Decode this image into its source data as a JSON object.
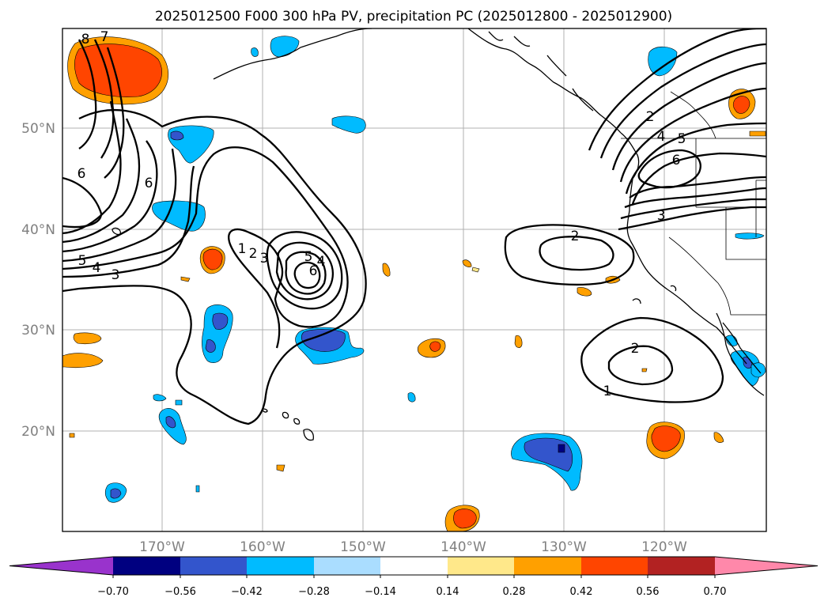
{
  "title": "2025012500 F000 300 hPa PV, precipitation PC (2025012800 - 2025012900)",
  "map": {
    "lat_labels": [
      "50°N",
      "40°N",
      "30°N",
      "20°N"
    ],
    "lon_labels": [
      "170°W",
      "160°W",
      "150°W",
      "140°W",
      "130°W",
      "120°W"
    ],
    "pv_contour_labels": [
      "8",
      "7",
      "6",
      "6",
      "5",
      "4",
      "3",
      "1",
      "2",
      "3",
      "5",
      "4",
      "6",
      "2",
      "2",
      "1",
      "2",
      "4",
      "5",
      "6",
      "3"
    ]
  },
  "colorbar": {
    "tick_labels": [
      "−0.70",
      "−0.56",
      "−0.42",
      "−0.28",
      "−0.14",
      "0.14",
      "0.28",
      "0.42",
      "0.56",
      "0.70"
    ],
    "colors": [
      "#9933cc",
      "#000080",
      "#3355cc",
      "#00bbff",
      "#aaddff",
      "#ffffff",
      "#ffe88a",
      "#ffa000",
      "#ff4500",
      "#b22222",
      "#ff88aa"
    ]
  }
}
